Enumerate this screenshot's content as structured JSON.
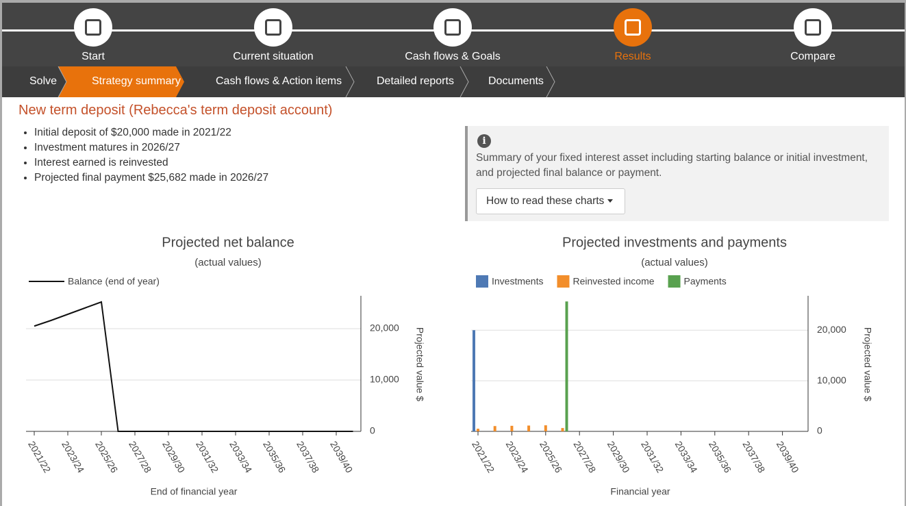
{
  "nav": {
    "steps": [
      "Start",
      "Current situation",
      "Cash flows & Goals",
      "Results",
      "Compare"
    ]
  },
  "subnav": {
    "items": [
      "Solve",
      "Strategy summary",
      "Cash flows & Action items",
      "Detailed reports",
      "Documents"
    ]
  },
  "heading": "New term deposit (Rebecca's term deposit account)",
  "bullets": [
    "Initial deposit of $20,000 made in 2021/22",
    "Investment matures in 2026/27",
    "Interest earned is reinvested",
    "Projected final payment $25,682 made in 2026/27"
  ],
  "info": {
    "text": "Summary of your fixed interest asset including starting balance or initial investment, and projected final balance or payment.",
    "button": "How to read these charts"
  },
  "chart_data": [
    {
      "type": "line",
      "title": "Projected net balance",
      "subtitle": "(actual values)",
      "x_label": "End of financial year",
      "y_label": "Projected value $",
      "categories": [
        "2021/22",
        null,
        "2023/24",
        null,
        "2025/26",
        null,
        "2027/28",
        null,
        "2029/30",
        null,
        "2031/32",
        null,
        "2033/34",
        null,
        "2035/36",
        null,
        "2037/38",
        null,
        "2039/40",
        null
      ],
      "series": [
        {
          "name": "Balance (end of year)",
          "color": "#111111",
          "values": [
            20500,
            21600,
            22800,
            24000,
            25200,
            0,
            0,
            0,
            0,
            0,
            0,
            0,
            0,
            0,
            0,
            0,
            0,
            0,
            0,
            0
          ]
        }
      ],
      "ylim": [
        0,
        26400
      ],
      "yticks": [
        0,
        {
          "value": 10000,
          "label": "10,000"
        },
        {
          "value": 20000,
          "label": "20,000"
        }
      ],
      "grid": true
    },
    {
      "type": "bar",
      "title": "Projected investments and payments",
      "subtitle": "(actual values)",
      "x_label": "Financial year",
      "y_label": "Projected value $",
      "categories": [
        "2021/22",
        null,
        "2023/24",
        null,
        "2025/26",
        null,
        "2027/28",
        null,
        "2029/30",
        null,
        "2031/32",
        null,
        "2033/34",
        null,
        "2035/36",
        null,
        "2037/38",
        null,
        "2039/40",
        null
      ],
      "series": [
        {
          "name": "Investments",
          "color": "#4e79b4",
          "values": [
            20000,
            0,
            0,
            0,
            0,
            0,
            0,
            0,
            0,
            0,
            0,
            0,
            0,
            0,
            0,
            0,
            0,
            0,
            0,
            0
          ]
        },
        {
          "name": "Reinvested income",
          "color": "#f28e2b",
          "values": [
            520,
            1050,
            1100,
            1150,
            1200,
            660,
            0,
            0,
            0,
            0,
            0,
            0,
            0,
            0,
            0,
            0,
            0,
            0,
            0,
            0
          ]
        },
        {
          "name": "Payments",
          "color": "#59a14f",
          "values": [
            0,
            0,
            0,
            0,
            0,
            25682,
            0,
            0,
            0,
            0,
            0,
            0,
            0,
            0,
            0,
            0,
            0,
            0,
            0,
            0
          ]
        }
      ],
      "ylim": [
        0,
        26800
      ],
      "yticks": [
        0,
        {
          "value": 10000,
          "label": "10,000"
        },
        {
          "value": 20000,
          "label": "20,000"
        }
      ],
      "grid": true
    }
  ]
}
